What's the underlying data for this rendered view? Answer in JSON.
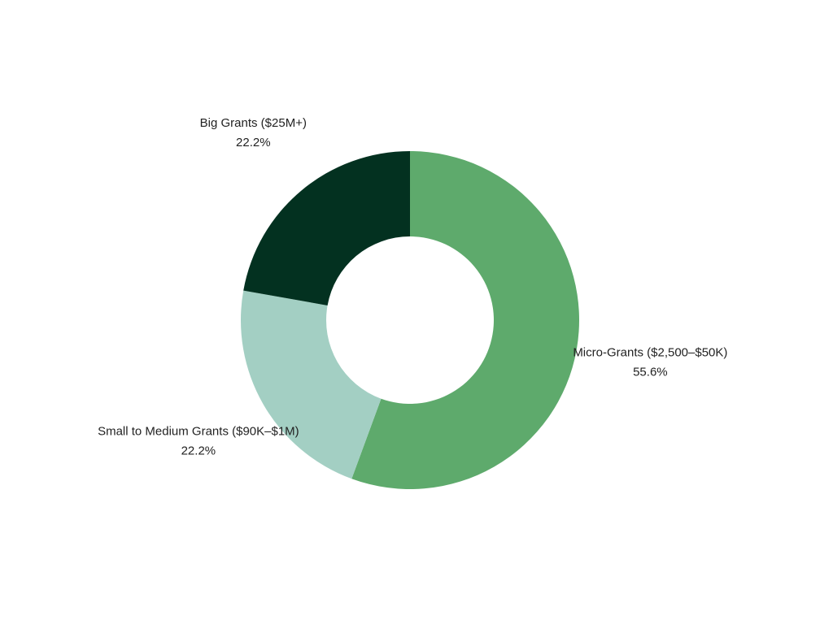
{
  "chart_data": {
    "type": "donut",
    "categories": [
      "Micro-Grants ($2,500–$50K)",
      "Small to Medium Grants ($90K–$1M)",
      "Big Grants ($25M+)"
    ],
    "values": [
      55.6,
      22.2,
      22.2
    ],
    "value_labels": [
      "55.6%",
      "22.2%",
      "22.2%"
    ],
    "colors": [
      "#5eaa6c",
      "#a3cfc3",
      "#033120"
    ]
  }
}
